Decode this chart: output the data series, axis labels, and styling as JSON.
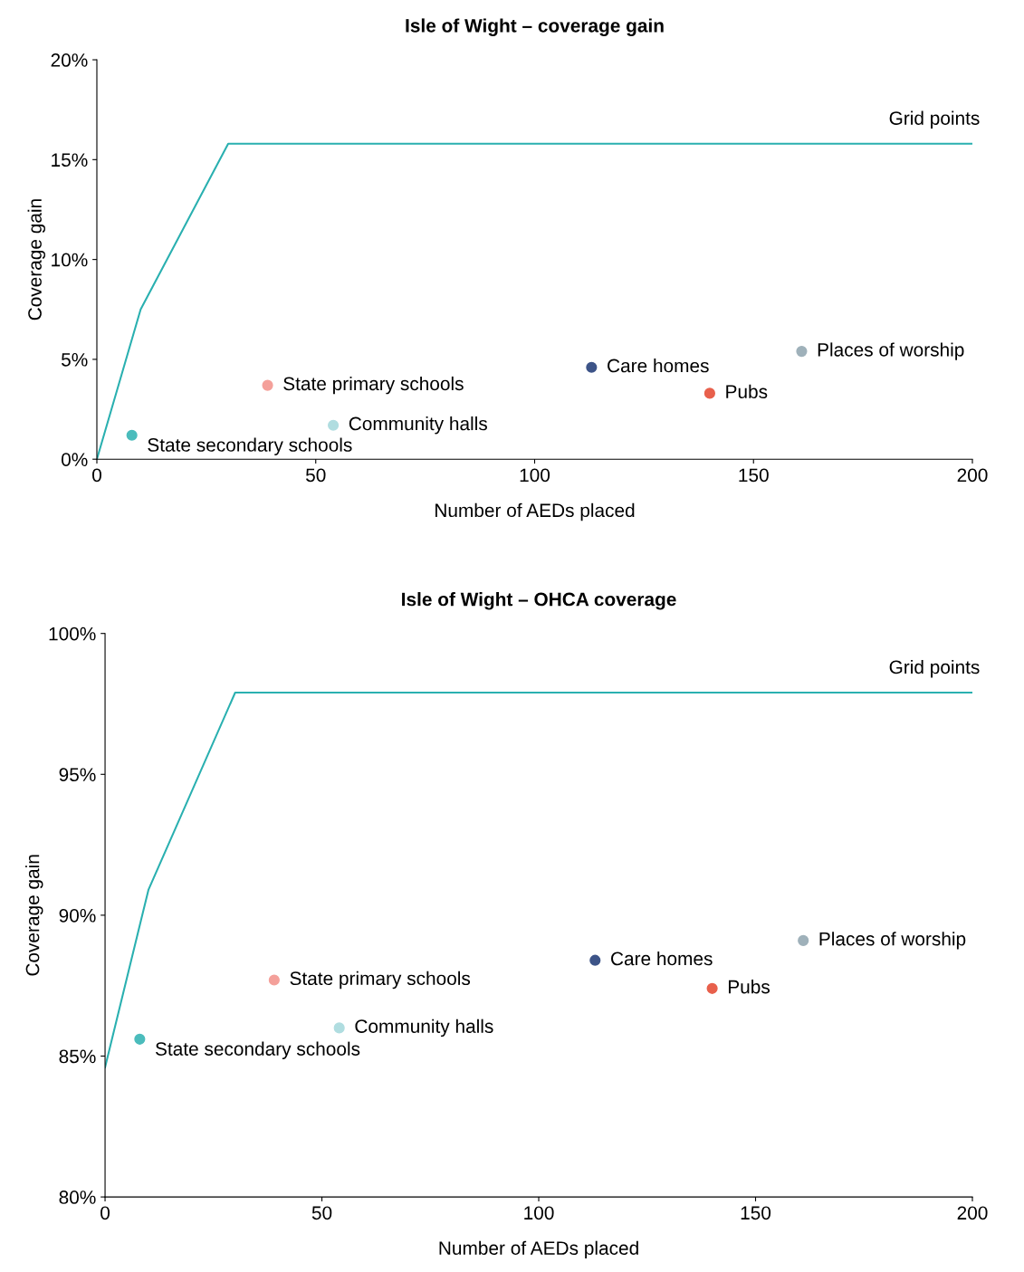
{
  "chart_data": [
    {
      "type": "scatter",
      "title": "Isle of Wight – coverage gain",
      "xlabel": "Number of AEDs placed",
      "ylabel": "Coverage gain",
      "xlim": [
        0,
        200
      ],
      "xticks": [
        0,
        50,
        100,
        150,
        200
      ],
      "ylim": [
        0,
        20
      ],
      "yticks": [
        {
          "value": 0,
          "label": "0%"
        },
        {
          "value": 5,
          "label": "5%"
        },
        {
          "value": 10,
          "label": "10%"
        },
        {
          "value": 15,
          "label": "15%"
        },
        {
          "value": 20,
          "label": "20%"
        }
      ],
      "grid": false,
      "legend": false,
      "marker": "circle",
      "series": [
        {
          "name": "Grid points",
          "type": "line",
          "marker": "none",
          "color": "#2ab0b0",
          "x": [
            0,
            10,
            30,
            200
          ],
          "values": [
            0,
            7.5,
            15.8,
            15.8
          ]
        },
        {
          "name": "State secondary schools",
          "color": "#4bbcbc",
          "x": [
            8
          ],
          "values": [
            1.2
          ]
        },
        {
          "name": "State primary schools",
          "color": "#f4a09a",
          "x": [
            39
          ],
          "values": [
            3.7
          ]
        },
        {
          "name": "Community halls",
          "color": "#b0dde0",
          "x": [
            54
          ],
          "values": [
            1.7
          ]
        },
        {
          "name": "Care homes",
          "color": "#3d5488",
          "x": [
            113
          ],
          "values": [
            4.6
          ]
        },
        {
          "name": "Pubs",
          "color": "#e8604c",
          "x": [
            140
          ],
          "values": [
            3.3
          ]
        },
        {
          "name": "Places of worship",
          "color": "#9fb1ba",
          "x": [
            161
          ],
          "values": [
            5.4
          ]
        }
      ]
    },
    {
      "type": "scatter",
      "title": "Isle of Wight – OHCA coverage",
      "xlabel": "Number of AEDs placed",
      "ylabel": "Coverage gain",
      "xlim": [
        0,
        200
      ],
      "xticks": [
        0,
        50,
        100,
        150,
        200
      ],
      "ylim": [
        80,
        100
      ],
      "yticks": [
        {
          "value": 80,
          "label": "80%"
        },
        {
          "value": 85,
          "label": "85%"
        },
        {
          "value": 90,
          "label": "90%"
        },
        {
          "value": 95,
          "label": "95%"
        },
        {
          "value": 100,
          "label": "100%"
        }
      ],
      "grid": false,
      "legend": false,
      "marker": "circle",
      "series": [
        {
          "name": "Grid points",
          "type": "line",
          "marker": "none",
          "color": "#2ab0b0",
          "x": [
            0,
            10,
            30,
            200
          ],
          "values": [
            84.6,
            90.9,
            97.9,
            97.9
          ]
        },
        {
          "name": "State secondary schools",
          "color": "#4bbcbc",
          "x": [
            8
          ],
          "values": [
            85.6
          ]
        },
        {
          "name": "State primary schools",
          "color": "#f4a09a",
          "x": [
            39
          ],
          "values": [
            87.7
          ]
        },
        {
          "name": "Community halls",
          "color": "#b0dde0",
          "x": [
            54
          ],
          "values": [
            86.0
          ]
        },
        {
          "name": "Care homes",
          "color": "#3d5488",
          "x": [
            113
          ],
          "values": [
            88.4
          ]
        },
        {
          "name": "Pubs",
          "color": "#e8604c",
          "x": [
            140
          ],
          "values": [
            87.4
          ]
        },
        {
          "name": "Places of worship",
          "color": "#9fb1ba",
          "x": [
            161
          ],
          "values": [
            89.1
          ]
        }
      ]
    }
  ]
}
